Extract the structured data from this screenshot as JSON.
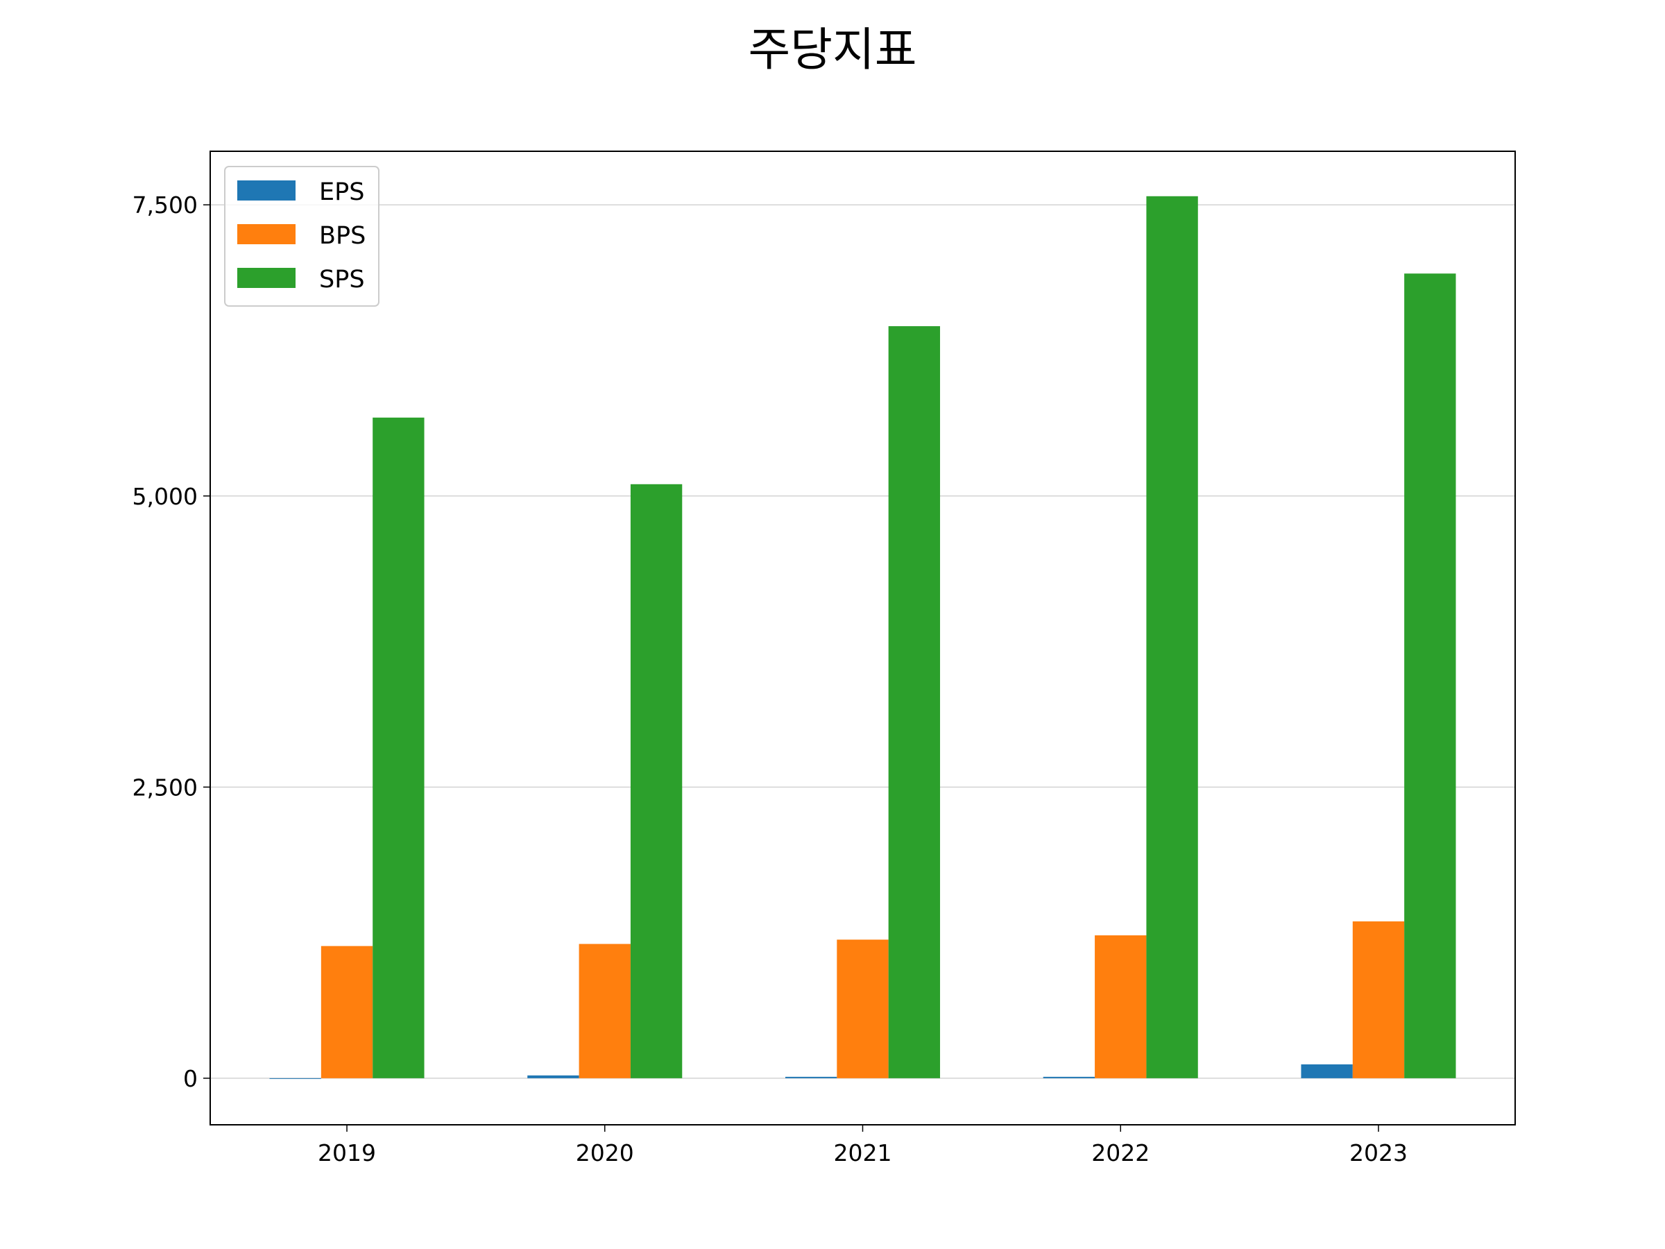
{
  "chart_data": {
    "type": "bar",
    "title": "주당지표",
    "xlabel": "",
    "ylabel": "",
    "categories": [
      "2019",
      "2020",
      "2021",
      "2022",
      "2023"
    ],
    "series": [
      {
        "name": "EPS",
        "color": "#1f77b4",
        "values": [
          -6,
          24,
          12,
          12,
          119
        ]
      },
      {
        "name": "BPS",
        "color": "#ff7f0e",
        "values": [
          1135,
          1153,
          1190,
          1227,
          1347
        ]
      },
      {
        "name": "SPS",
        "color": "#2ca02c",
        "values": [
          5673,
          5101,
          6458,
          7574,
          6910
        ]
      }
    ],
    "ylim": [
      -400,
      7960
    ],
    "yticks": [
      0,
      2500,
      5000,
      7500
    ],
    "ytick_labels": [
      "0",
      "2,500",
      "5,000",
      "7,500"
    ],
    "grid": "y",
    "legend": "top-left"
  }
}
